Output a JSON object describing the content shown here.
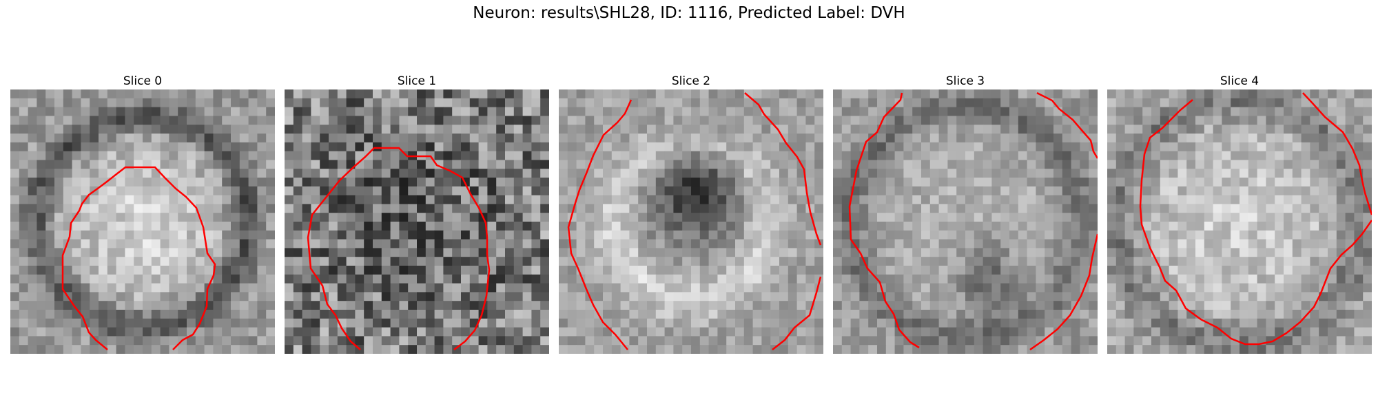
{
  "figure": {
    "title": "Neuron: results\\SHL28, ID: 1116, Predicted Label: DVH"
  },
  "panels": [
    {
      "label": "Slice 0",
      "seed": 11,
      "pattern": "ring-bright-center"
    },
    {
      "label": "Slice 1",
      "seed": 29,
      "pattern": "noisy"
    },
    {
      "label": "Slice 2",
      "seed": 47,
      "pattern": "bright-ring-dark-center"
    },
    {
      "label": "Slice 3",
      "seed": 63,
      "pattern": "mid-gray"
    },
    {
      "label": "Slice 4",
      "seed": 81,
      "pattern": "bright-center"
    }
  ],
  "styles": {
    "contour_color": "#ff0000"
  }
}
